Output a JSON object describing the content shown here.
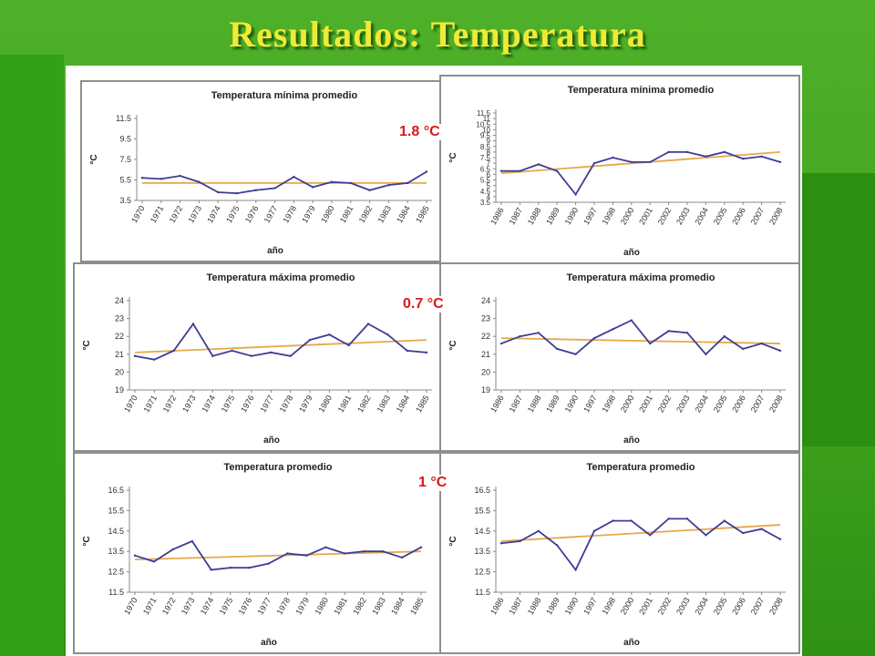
{
  "slide": {
    "title": "Resultados: Temperatura"
  },
  "colors": {
    "series": "#3d3d95",
    "trend": "#e6a84a",
    "change": "#d9191c"
  },
  "annotations": [
    "1.8 °C",
    "0.7 °C",
    "1 °C"
  ],
  "chart_data": [
    {
      "type": "line",
      "title": "Temperatura mínima promedio",
      "xlabel": "año",
      "ylabel": "°C",
      "categories": [
        "1970",
        "1971",
        "1972",
        "1973",
        "1974",
        "1975",
        "1976",
        "1977",
        "1978",
        "1979",
        "1980",
        "1981",
        "1982",
        "1983",
        "1984",
        "1985"
      ],
      "yticks": [
        "11.5",
        "9.5",
        "7.5",
        "5.5",
        "3.5"
      ],
      "ylim": [
        3.5,
        11.5
      ],
      "values": [
        5.7,
        5.6,
        5.9,
        5.3,
        4.3,
        4.2,
        4.5,
        4.7,
        5.8,
        4.8,
        5.3,
        5.2,
        4.5,
        5.0,
        5.2,
        6.3
      ],
      "trend": [
        5.2,
        5.2
      ]
    },
    {
      "type": "line",
      "title": "Temperatura mínima promedio",
      "xlabel": "año",
      "ylabel": "°C",
      "categories": [
        "1986",
        "1987",
        "1988",
        "1989",
        "1990",
        "1997",
        "1998",
        "2000",
        "2001",
        "2002",
        "2003",
        "2004",
        "2005",
        "2006",
        "2007",
        "2008"
      ],
      "yticks": [
        "11.5",
        "11",
        "10.5",
        "10",
        "9.5",
        "9",
        "8.5",
        "8",
        "7.5",
        "7",
        "6.5",
        "6",
        "5.5",
        "5",
        "4.5",
        "4",
        "3.5"
      ],
      "ylim": [
        3.5,
        11.5
      ],
      "values": [
        6.3,
        6.3,
        6.9,
        6.3,
        4.2,
        7.0,
        7.5,
        7.1,
        7.1,
        8.0,
        8.0,
        7.6,
        8.0,
        7.4,
        7.6,
        7.1
      ],
      "trend": [
        6.1,
        8.0
      ]
    },
    {
      "type": "line",
      "title": "Temperatura máxima promedio",
      "xlabel": "año",
      "ylabel": "°C",
      "categories": [
        "1970",
        "1971",
        "1972",
        "1973",
        "1974",
        "1975",
        "1976",
        "1977",
        "1978",
        "1979",
        "1980",
        "1981",
        "1982",
        "1983",
        "1984",
        "1985"
      ],
      "yticks": [
        "24",
        "23",
        "22",
        "21",
        "20",
        "19"
      ],
      "ylim": [
        19,
        24
      ],
      "values": [
        20.9,
        20.7,
        21.2,
        22.7,
        20.9,
        21.2,
        20.9,
        21.1,
        20.9,
        21.8,
        22.1,
        21.5,
        22.7,
        22.1,
        21.2,
        21.1
      ],
      "trend": [
        21.1,
        21.8
      ]
    },
    {
      "type": "line",
      "title": "Temperatura máxima promedio",
      "xlabel": "año",
      "ylabel": "°C",
      "categories": [
        "1986",
        "1987",
        "1988",
        "1989",
        "1990",
        "1997",
        "1998",
        "2000",
        "2001",
        "2002",
        "2003",
        "2004",
        "2005",
        "2006",
        "2007",
        "2008"
      ],
      "yticks": [
        "24",
        "23",
        "22",
        "21",
        "20",
        "19"
      ],
      "ylim": [
        19,
        24
      ],
      "values": [
        21.6,
        22.0,
        22.2,
        21.3,
        21.0,
        21.9,
        22.4,
        22.9,
        21.6,
        22.3,
        22.2,
        21.0,
        22.0,
        21.3,
        21.6,
        21.2
      ],
      "trend": [
        21.9,
        21.6
      ]
    },
    {
      "type": "line",
      "title": "Temperatura promedio",
      "xlabel": "año",
      "ylabel": "°C",
      "categories": [
        "1970",
        "1971",
        "1972",
        "1973",
        "1974",
        "1975",
        "1976",
        "1977",
        "1978",
        "1979",
        "1980",
        "1981",
        "1982",
        "1983",
        "1984",
        "1985"
      ],
      "yticks": [
        "16.5",
        "15.5",
        "14.5",
        "13.5",
        "12.5",
        "11.5"
      ],
      "ylim": [
        11.5,
        16.5
      ],
      "values": [
        13.3,
        13.0,
        13.6,
        14.0,
        12.6,
        12.7,
        12.7,
        12.9,
        13.4,
        13.3,
        13.7,
        13.4,
        13.5,
        13.5,
        13.2,
        13.7
      ],
      "trend": [
        13.1,
        13.5
      ]
    },
    {
      "type": "line",
      "title": "Temperatura promedio",
      "xlabel": "año",
      "ylabel": "°C",
      "categories": [
        "1986",
        "1987",
        "1988",
        "1989",
        "1990",
        "1997",
        "1998",
        "2000",
        "2001",
        "2002",
        "2003",
        "2004",
        "2005",
        "2006",
        "2007",
        "2008"
      ],
      "yticks": [
        "16.5",
        "15.5",
        "14.5",
        "13.5",
        "12.5",
        "11.5"
      ],
      "ylim": [
        11.5,
        16.5
      ],
      "values": [
        13.9,
        14.0,
        14.5,
        13.8,
        12.6,
        14.5,
        15.0,
        15.0,
        14.3,
        15.1,
        15.1,
        14.3,
        15.0,
        14.4,
        14.6,
        14.1
      ],
      "trend": [
        14.0,
        14.8
      ]
    }
  ]
}
